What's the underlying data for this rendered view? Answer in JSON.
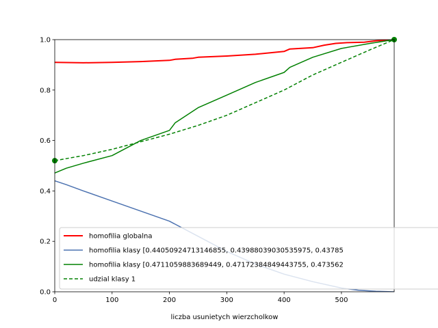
{
  "chart_data": {
    "type": "line",
    "title": "",
    "xlabel": "liczba usunietych wierzcholkow",
    "ylabel": "",
    "xlim": [
      0,
      592
    ],
    "ylim": [
      0,
      1.0
    ],
    "xticks": [
      0,
      100,
      200,
      300,
      400,
      500
    ],
    "yticks": [
      0.0,
      0.2,
      0.4,
      0.6,
      0.8,
      1.0
    ],
    "tick_labels_x": [
      "0",
      "100",
      "200",
      "300",
      "400",
      "500"
    ],
    "tick_labels_y": [
      "0.0",
      "0.2",
      "0.4",
      "0.6",
      "0.8",
      "1.0"
    ],
    "grid": false,
    "legend_placement": "lower-right",
    "series": [
      {
        "name": "homofilia globalna",
        "color": "#ff0000",
        "style": "solid",
        "x": [
          0,
          50,
          100,
          150,
          200,
          210,
          240,
          250,
          300,
          350,
          400,
          410,
          450,
          470,
          490,
          510,
          540,
          560,
          592
        ],
        "y": [
          0.91,
          0.908,
          0.91,
          0.913,
          0.918,
          0.922,
          0.926,
          0.93,
          0.935,
          0.942,
          0.953,
          0.963,
          0.968,
          0.978,
          0.985,
          0.988,
          0.99,
          0.995,
          1.0
        ]
      },
      {
        "name": "homofilia klasy [0.44050924713146855, 0.43988039030535975, 0.43785",
        "color": "#4c72b0",
        "style": "solid",
        "x": [
          0,
          20,
          50,
          100,
          150,
          200,
          250,
          300,
          350,
          400,
          450,
          500,
          530,
          560,
          592
        ],
        "y": [
          0.44,
          0.425,
          0.4,
          0.36,
          0.32,
          0.28,
          0.22,
          0.16,
          0.11,
          0.07,
          0.04,
          0.015,
          0.006,
          0.002,
          0.0
        ]
      },
      {
        "name": "homofilia klasy [0.4711059883689449, 0.47172384849443755, 0.473562",
        "color": "#008000",
        "style": "solid",
        "x": [
          0,
          20,
          50,
          100,
          150,
          200,
          210,
          250,
          300,
          350,
          400,
          410,
          450,
          500,
          550,
          592
        ],
        "y": [
          0.471,
          0.49,
          0.51,
          0.54,
          0.6,
          0.64,
          0.67,
          0.73,
          0.78,
          0.83,
          0.87,
          0.89,
          0.93,
          0.965,
          0.985,
          1.0
        ]
      },
      {
        "name": "udzial klasy 1",
        "color": "#008000",
        "style": "dashed",
        "x": [
          0,
          50,
          100,
          150,
          200,
          250,
          300,
          350,
          400,
          450,
          500,
          550,
          592
        ],
        "y": [
          0.52,
          0.54,
          0.565,
          0.595,
          0.625,
          0.66,
          0.7,
          0.75,
          0.8,
          0.86,
          0.91,
          0.96,
          1.0
        ]
      }
    ],
    "markers": [
      {
        "x": 0,
        "y": 0.52,
        "color": "#008000"
      },
      {
        "x": 592,
        "y": 1.0,
        "color": "#008000"
      }
    ]
  }
}
